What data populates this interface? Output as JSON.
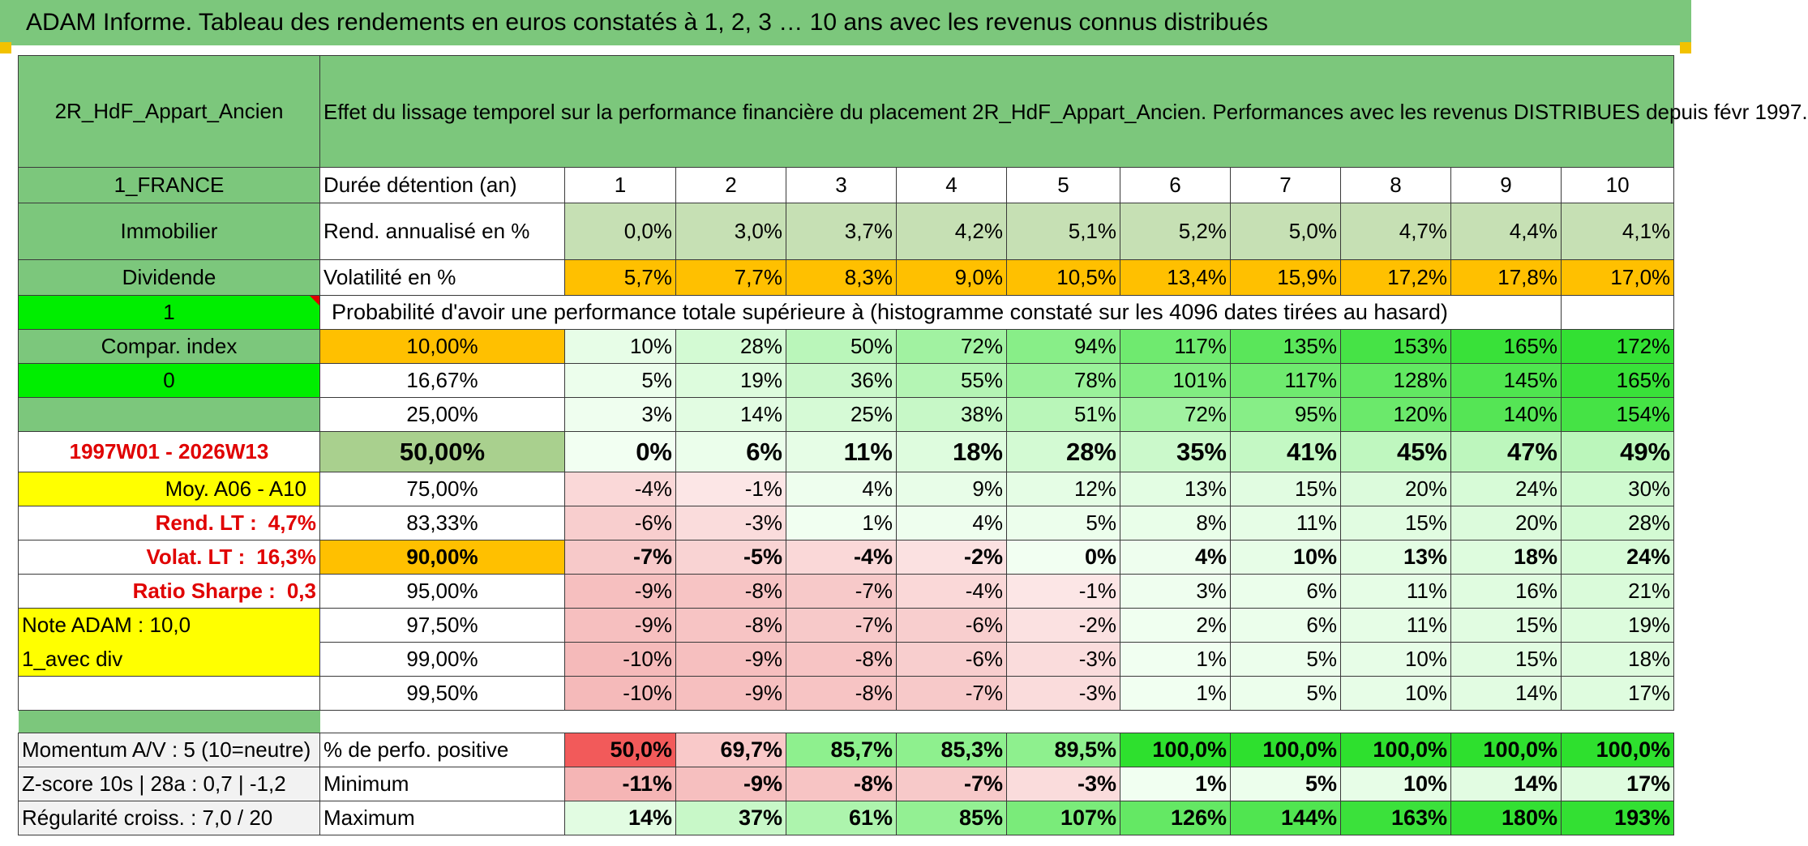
{
  "title": "ADAM Informe. Tableau des rendements en euros constatés à 1, 2, 3 … 10 ans avec les revenus connus distribués",
  "header": {
    "placement": "2R_HdF_Appart_Ancien",
    "description": "Effet du lissage temporel sur la performance financière du placement 2R_HdF_Appart_Ancien. Performances avec les revenus DISTRIBUES depuis févr 1997."
  },
  "left": {
    "country": "1_FRANCE",
    "category": "Immobilier",
    "income": "Dividende",
    "flag1": "1",
    "compar": "Compar. index",
    "flag0": "0",
    "period": "1997W01 - 2026W13",
    "moy": "Moy. A06 - A10",
    "rend_lt_label": "Rend. LT :",
    "rend_lt_value": "4,7%",
    "volat_lt_label": "Volat. LT :",
    "volat_lt_value": "16,3%",
    "sharpe_label": "Ratio Sharpe :",
    "sharpe_value": "0,3",
    "note": "Note ADAM : 10,0",
    "avec_div": "1_avec div"
  },
  "duree": {
    "label": "Durée détention (an)",
    "years": [
      "1",
      "2",
      "3",
      "4",
      "5",
      "6",
      "7",
      "8",
      "9",
      "10"
    ]
  },
  "rend": {
    "label": "Rend. annualisé en %",
    "values": [
      "0,0%",
      "3,0%",
      "3,7%",
      "4,2%",
      "5,1%",
      "5,2%",
      "5,0%",
      "4,7%",
      "4,4%",
      "4,1%"
    ]
  },
  "volat": {
    "label": "Volatilité en %",
    "values": [
      "5,7%",
      "7,7%",
      "8,3%",
      "9,0%",
      "10,5%",
      "13,4%",
      "15,9%",
      "17,2%",
      "17,8%",
      "17,0%"
    ]
  },
  "proba_title": "Probabilité d'avoir une performance totale supérieure à (histogramme constaté sur les 4096 dates tirées au hasard)",
  "quantiles": [
    {
      "p": "10,00%",
      "v": [
        "10%",
        "28%",
        "50%",
        "72%",
        "94%",
        "117%",
        "135%",
        "153%",
        "165%",
        "172%"
      ]
    },
    {
      "p": "16,67%",
      "v": [
        "5%",
        "19%",
        "36%",
        "55%",
        "78%",
        "101%",
        "117%",
        "128%",
        "145%",
        "165%"
      ]
    },
    {
      "p": "25,00%",
      "v": [
        "3%",
        "14%",
        "25%",
        "38%",
        "51%",
        "72%",
        "95%",
        "120%",
        "140%",
        "154%"
      ]
    },
    {
      "p": "50,00%",
      "v": [
        "0%",
        "6%",
        "11%",
        "18%",
        "28%",
        "35%",
        "41%",
        "45%",
        "47%",
        "49%"
      ]
    },
    {
      "p": "75,00%",
      "v": [
        "-4%",
        "-1%",
        "4%",
        "9%",
        "12%",
        "13%",
        "15%",
        "20%",
        "24%",
        "30%"
      ]
    },
    {
      "p": "83,33%",
      "v": [
        "-6%",
        "-3%",
        "1%",
        "4%",
        "5%",
        "8%",
        "11%",
        "15%",
        "20%",
        "28%"
      ]
    },
    {
      "p": "90,00%",
      "v": [
        "-7%",
        "-5%",
        "-4%",
        "-2%",
        "0%",
        "4%",
        "10%",
        "13%",
        "18%",
        "24%"
      ]
    },
    {
      "p": "95,00%",
      "v": [
        "-9%",
        "-8%",
        "-7%",
        "-4%",
        "-1%",
        "3%",
        "6%",
        "11%",
        "16%",
        "21%"
      ]
    },
    {
      "p": "97,50%",
      "v": [
        "-9%",
        "-8%",
        "-7%",
        "-6%",
        "-2%",
        "2%",
        "6%",
        "11%",
        "15%",
        "19%"
      ]
    },
    {
      "p": "99,00%",
      "v": [
        "-10%",
        "-9%",
        "-8%",
        "-6%",
        "-3%",
        "1%",
        "5%",
        "10%",
        "15%",
        "18%"
      ]
    },
    {
      "p": "99,50%",
      "v": [
        "-10%",
        "-9%",
        "-8%",
        "-7%",
        "-3%",
        "1%",
        "5%",
        "10%",
        "14%",
        "17%"
      ]
    }
  ],
  "bottom": [
    {
      "left": "Momentum A/V : 5 (10=neutre)",
      "label": "% de perfo. positive",
      "v": [
        "50,0%",
        "69,7%",
        "85,7%",
        "85,3%",
        "89,5%",
        "100,0%",
        "100,0%",
        "100,0%",
        "100,0%",
        "100,0%"
      ]
    },
    {
      "left": "Z-score 10s | 28a : 0,7 | -1,2",
      "label": "Minimum",
      "v": [
        "-11%",
        "-9%",
        "-8%",
        "-7%",
        "-3%",
        "1%",
        "5%",
        "10%",
        "14%",
        "17%"
      ]
    },
    {
      "left": "Régularité croiss. : 7,0 / 20",
      "label": "Maximum",
      "v": [
        "14%",
        "37%",
        "61%",
        "85%",
        "107%",
        "126%",
        "144%",
        "163%",
        "180%",
        "193%"
      ]
    }
  ],
  "colors": {
    "green_header": "#7cc77c",
    "bright_green": "#00ee00",
    "yellow": "#ffff00",
    "orange": "#ffc000",
    "red_text": "#e00000",
    "light_green": "#c6e0b4"
  }
}
